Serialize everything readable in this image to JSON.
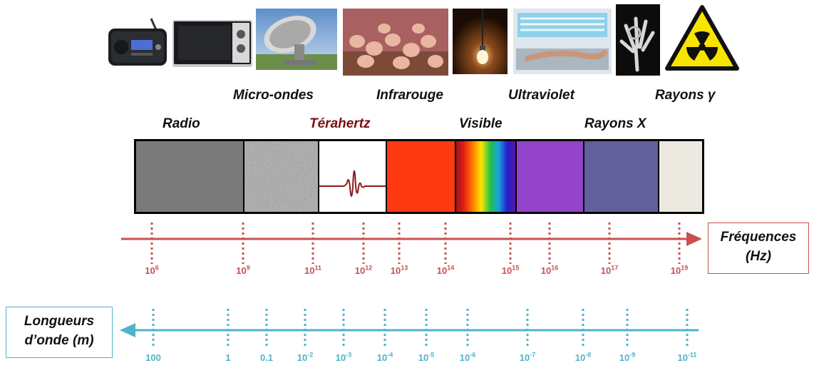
{
  "images": {
    "radio": "radio-set-icon",
    "microwave": "microwave-oven-icon",
    "antenna": "radio-telescope-dish-icon",
    "chicks": "infrared-heat-lamp-chicks-icon",
    "bulb": "light-bulb-icon",
    "tanning": "tanning-bed-icon",
    "xray": "x-ray-hand-icon",
    "radiation": "radiation-warning-sign-icon"
  },
  "bands_top": {
    "micro": "Micro-ondes",
    "infra": "Infrarouge",
    "uv": "Ultraviolet",
    "gamma": "Rayons γ"
  },
  "bands_mid": {
    "radio": "Radio",
    "thz": "Térahertz",
    "visible": "Visible",
    "xray": "Rayons X"
  },
  "colors": {
    "radio": "#7a7a7a",
    "thz_pulse": "#8b1a1a",
    "infrared": "#ff3a10",
    "uv": "#9444c8",
    "xray": "#62609a",
    "gamma": "#ece9e0",
    "freq_axis": "#c85050",
    "wave_axis": "#4fb3c9"
  },
  "frequency_axis": {
    "title_line1": "Fréquences",
    "title_line2": "(Hz)",
    "ticks": [
      {
        "base": "10",
        "exp": "6"
      },
      {
        "base": "10",
        "exp": "9"
      },
      {
        "base": "10",
        "exp": "11"
      },
      {
        "base": "10",
        "exp": "12"
      },
      {
        "base": "10",
        "exp": "13"
      },
      {
        "base": "10",
        "exp": "14"
      },
      {
        "base": "10",
        "exp": "15"
      },
      {
        "base": "10",
        "exp": "16"
      },
      {
        "base": "10",
        "exp": "17"
      },
      {
        "base": "10",
        "exp": "19"
      }
    ]
  },
  "wavelength_axis": {
    "title_line1": "Longueurs",
    "title_line2": "d’onde (m)",
    "ticks": [
      {
        "base": "100",
        "exp": ""
      },
      {
        "base": "1",
        "exp": ""
      },
      {
        "base": "0.1",
        "exp": ""
      },
      {
        "base": "10",
        "exp": "-2"
      },
      {
        "base": "10",
        "exp": "-3"
      },
      {
        "base": "10",
        "exp": "-4"
      },
      {
        "base": "10",
        "exp": "-5"
      },
      {
        "base": "10",
        "exp": "-6"
      },
      {
        "base": "10",
        "exp": "-7"
      },
      {
        "base": "10",
        "exp": "-8"
      },
      {
        "base": "10",
        "exp": "-9"
      },
      {
        "base": "10",
        "exp": "-11"
      }
    ]
  }
}
